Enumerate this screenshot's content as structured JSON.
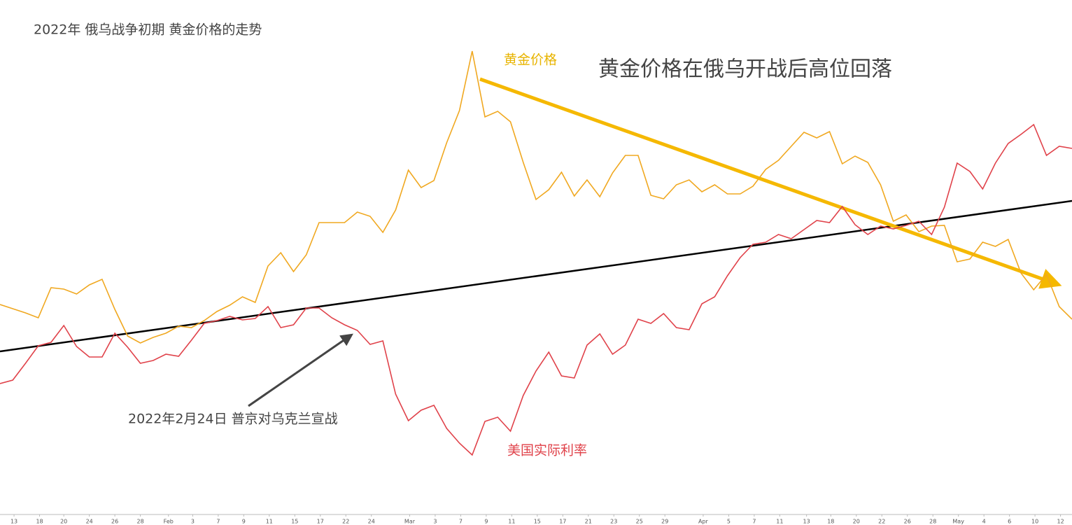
{
  "chart_data": {
    "type": "line",
    "title": "2022年 俄乌战争初期 黄金价格的走势",
    "annotations": [
      "黄金价格在俄乌开战后高位回落",
      "2022年2月24日 普京对乌克兰宣战"
    ],
    "x": [
      0,
      1,
      2,
      3,
      4,
      5,
      6,
      7,
      8,
      9,
      10,
      11,
      12,
      13,
      14,
      15,
      16,
      17,
      18,
      19,
      20,
      21,
      22,
      23,
      24,
      25,
      26,
      27,
      28,
      29,
      30,
      31,
      32,
      33,
      34,
      35,
      36,
      37,
      38,
      39,
      40,
      41,
      42,
      43,
      44,
      45,
      46,
      47,
      48,
      49,
      50,
      51,
      52,
      53,
      54,
      55,
      56,
      57,
      58,
      59,
      60,
      61,
      62,
      63,
      64,
      65,
      66,
      67,
      68,
      69,
      70,
      71,
      72,
      73,
      74,
      75,
      76,
      77,
      78,
      79,
      80,
      81,
      82,
      83,
      84
    ],
    "series": [
      {
        "name": "黄金价格",
        "color": "#f0a820",
        "values": [
          315,
          309,
          303,
          296,
          339,
          337,
          330,
          343,
          351,
          308,
          270,
          260,
          268,
          274,
          284,
          282,
          292,
          305,
          314,
          326,
          318,
          370,
          389,
          362,
          386,
          432,
          432,
          432,
          447,
          441,
          418,
          450,
          507,
          482,
          492,
          546,
          592,
          677,
          583,
          591,
          576,
          518,
          465,
          479,
          504,
          470,
          493,
          469,
          503,
          528,
          528,
          471,
          466,
          486,
          493,
          476,
          486,
          473,
          473,
          484,
          508,
          521,
          541,
          561,
          553,
          562,
          516,
          527,
          518,
          486,
          434,
          443,
          419,
          427,
          428,
          376,
          380,
          404,
          398,
          408,
          360,
          336,
          358,
          312,
          294
        ]
      },
      {
        "name": "美国实际利率",
        "color": "#e0424a",
        "values": [
          202,
          207,
          231,
          256,
          261,
          285,
          255,
          240,
          240,
          274,
          254,
          231,
          235,
          244,
          241,
          264,
          288,
          292,
          298,
          293,
          295,
          312,
          282,
          286,
          310,
          310,
          296,
          286,
          278,
          258,
          263,
          187,
          149,
          164,
          171,
          138,
          117,
          100,
          148,
          154,
          134,
          185,
          220,
          247,
          213,
          210,
          257,
          273,
          244,
          257,
          294,
          288,
          302,
          282,
          279,
          316,
          326,
          356,
          382,
          401,
          404,
          415,
          409,
          422,
          435,
          432,
          455,
          429,
          415,
          427,
          423,
          428,
          434,
          415,
          454,
          517,
          505,
          480,
          517,
          545,
          558,
          572,
          528,
          541,
          538
        ]
      }
    ],
    "xlim": [
      0,
      84
    ],
    "xticks": [
      {
        "value": 1.1,
        "label": "13"
      },
      {
        "value": 3.1,
        "label": "18"
      },
      {
        "value": 5.0,
        "label": "20"
      },
      {
        "value": 7.0,
        "label": "24"
      },
      {
        "value": 9.0,
        "label": "26"
      },
      {
        "value": 11.0,
        "label": "28"
      },
      {
        "value": 13.2,
        "label": "Feb"
      },
      {
        "value": 15.1,
        "label": "3"
      },
      {
        "value": 17.1,
        "label": "7"
      },
      {
        "value": 19.1,
        "label": "9"
      },
      {
        "value": 21.1,
        "label": "11"
      },
      {
        "value": 23.1,
        "label": "15"
      },
      {
        "value": 25.1,
        "label": "17"
      },
      {
        "value": 27.1,
        "label": "22"
      },
      {
        "value": 29.1,
        "label": "24"
      },
      {
        "value": 32.1,
        "label": "Mar"
      },
      {
        "value": 34.1,
        "label": "3"
      },
      {
        "value": 36.1,
        "label": "7"
      },
      {
        "value": 38.1,
        "label": "9"
      },
      {
        "value": 40.1,
        "label": "11"
      },
      {
        "value": 42.1,
        "label": "15"
      },
      {
        "value": 44.1,
        "label": "17"
      },
      {
        "value": 46.1,
        "label": "21"
      },
      {
        "value": 48.1,
        "label": "23"
      },
      {
        "value": 50.1,
        "label": "25"
      },
      {
        "value": 52.1,
        "label": "29"
      },
      {
        "value": 55.1,
        "label": "Apr"
      },
      {
        "value": 57.1,
        "label": "5"
      },
      {
        "value": 59.1,
        "label": "7"
      },
      {
        "value": 61.1,
        "label": "11"
      },
      {
        "value": 63.2,
        "label": "13"
      },
      {
        "value": 65.1,
        "label": "18"
      },
      {
        "value": 67.1,
        "label": "20"
      },
      {
        "value": 69.1,
        "label": "22"
      },
      {
        "value": 71.1,
        "label": "26"
      },
      {
        "value": 73.1,
        "label": "28"
      },
      {
        "value": 75.1,
        "label": "May"
      },
      {
        "value": 77.1,
        "label": "4"
      },
      {
        "value": 79.1,
        "label": "6"
      },
      {
        "value": 81.1,
        "label": "10"
      },
      {
        "value": 83.1,
        "label": "12"
      }
    ],
    "ylim": [
      0,
      700
    ]
  }
}
